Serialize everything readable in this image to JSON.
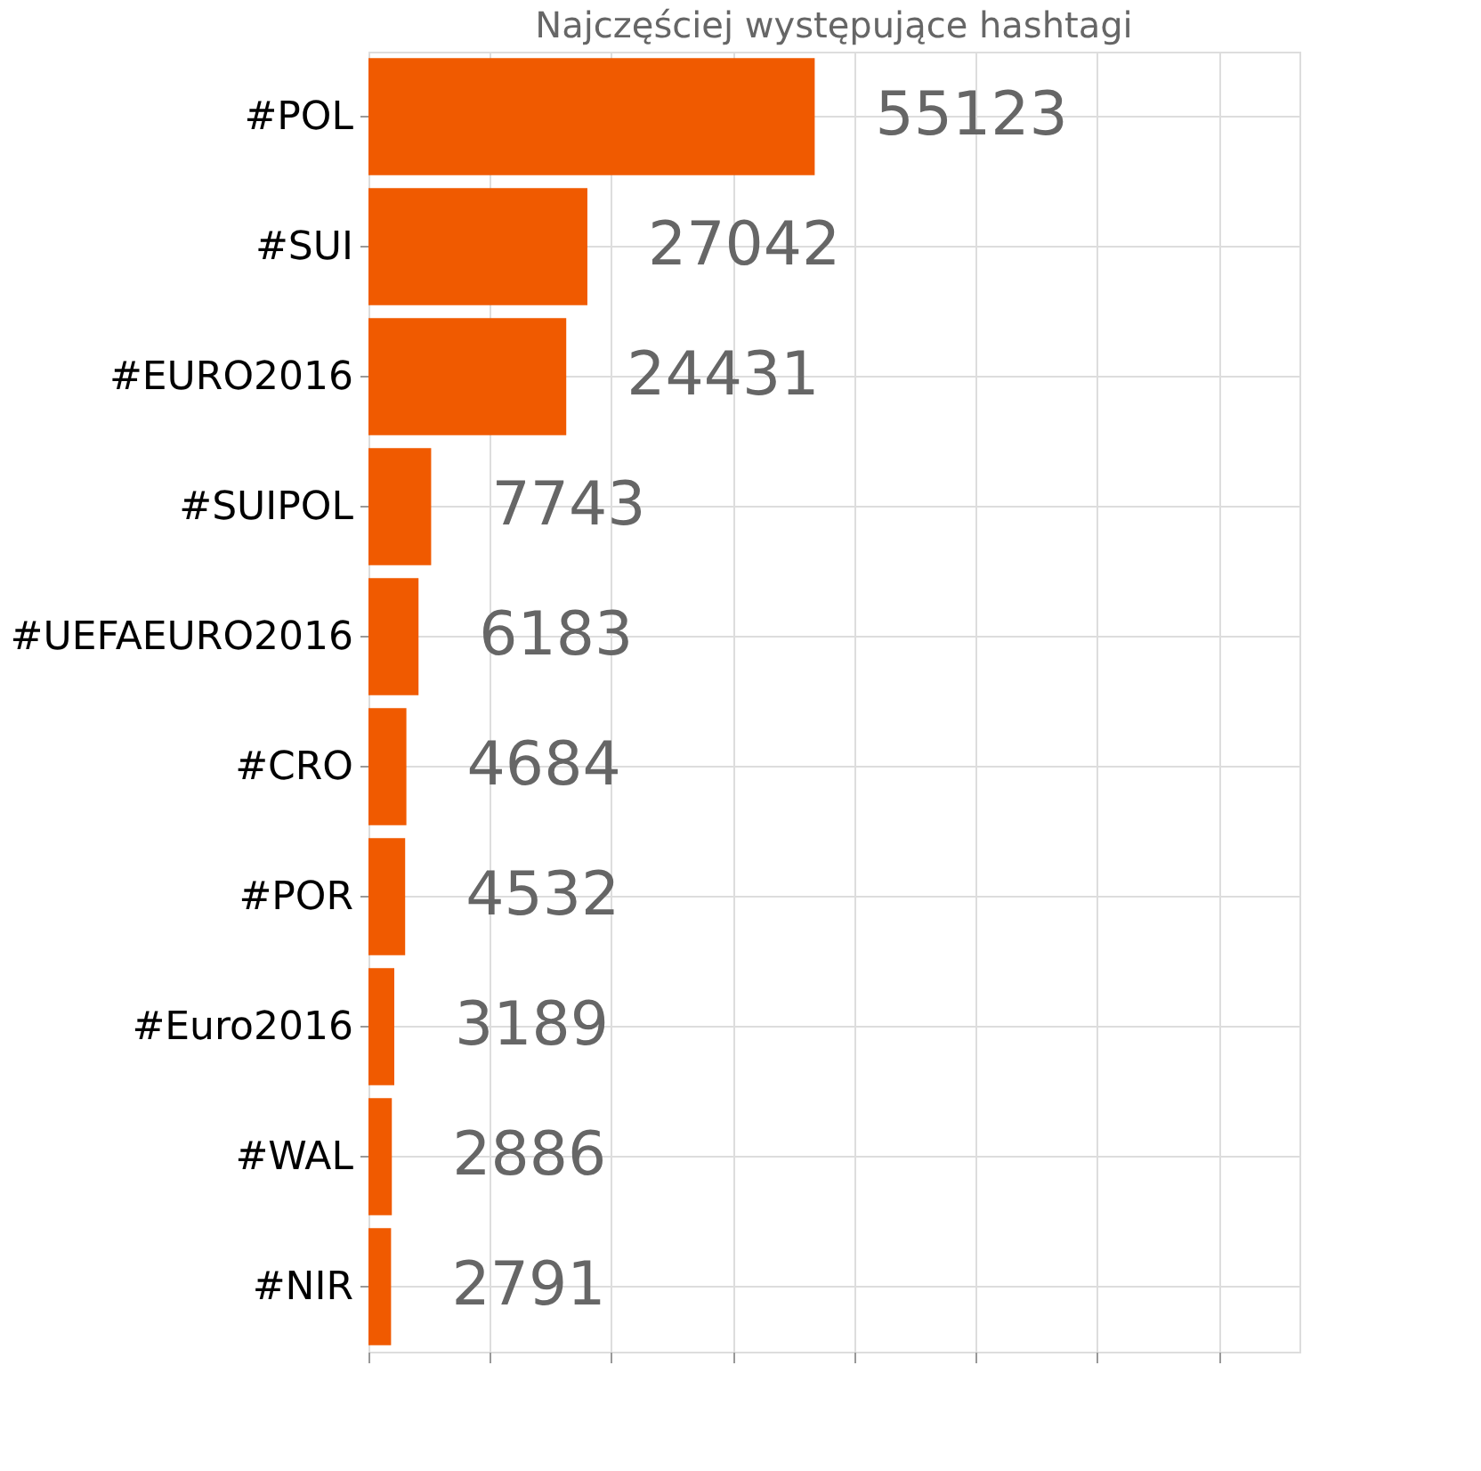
{
  "chart_data": {
    "type": "bar",
    "orientation": "horizontal",
    "title": "Najczęściej występujące hashtagi",
    "categories": [
      "#POL",
      "#SUI",
      "#EURO2016",
      "#SUIPOL",
      "#UEFAEURO2016",
      "#CRO",
      "#POR",
      "#Euro2016",
      "#WAL",
      "#NIR"
    ],
    "values": [
      55123,
      27042,
      24431,
      7743,
      6183,
      4684,
      4532,
      3189,
      2886,
      2791
    ],
    "color": "#f05a00",
    "data_labels": true,
    "grid": true,
    "tick_labels": "y",
    "xlim": [
      0,
      115000
    ],
    "xticks": [
      {
        "value": 0,
        "label": null
      },
      {
        "value": 15000,
        "label": null
      },
      {
        "value": 30000,
        "label": null
      },
      {
        "value": 45000,
        "label": null
      },
      {
        "value": 60000,
        "label": null
      },
      {
        "value": 75000,
        "label": null
      },
      {
        "value": 90000,
        "label": null
      },
      {
        "value": 105000,
        "label": null
      }
    ]
  }
}
